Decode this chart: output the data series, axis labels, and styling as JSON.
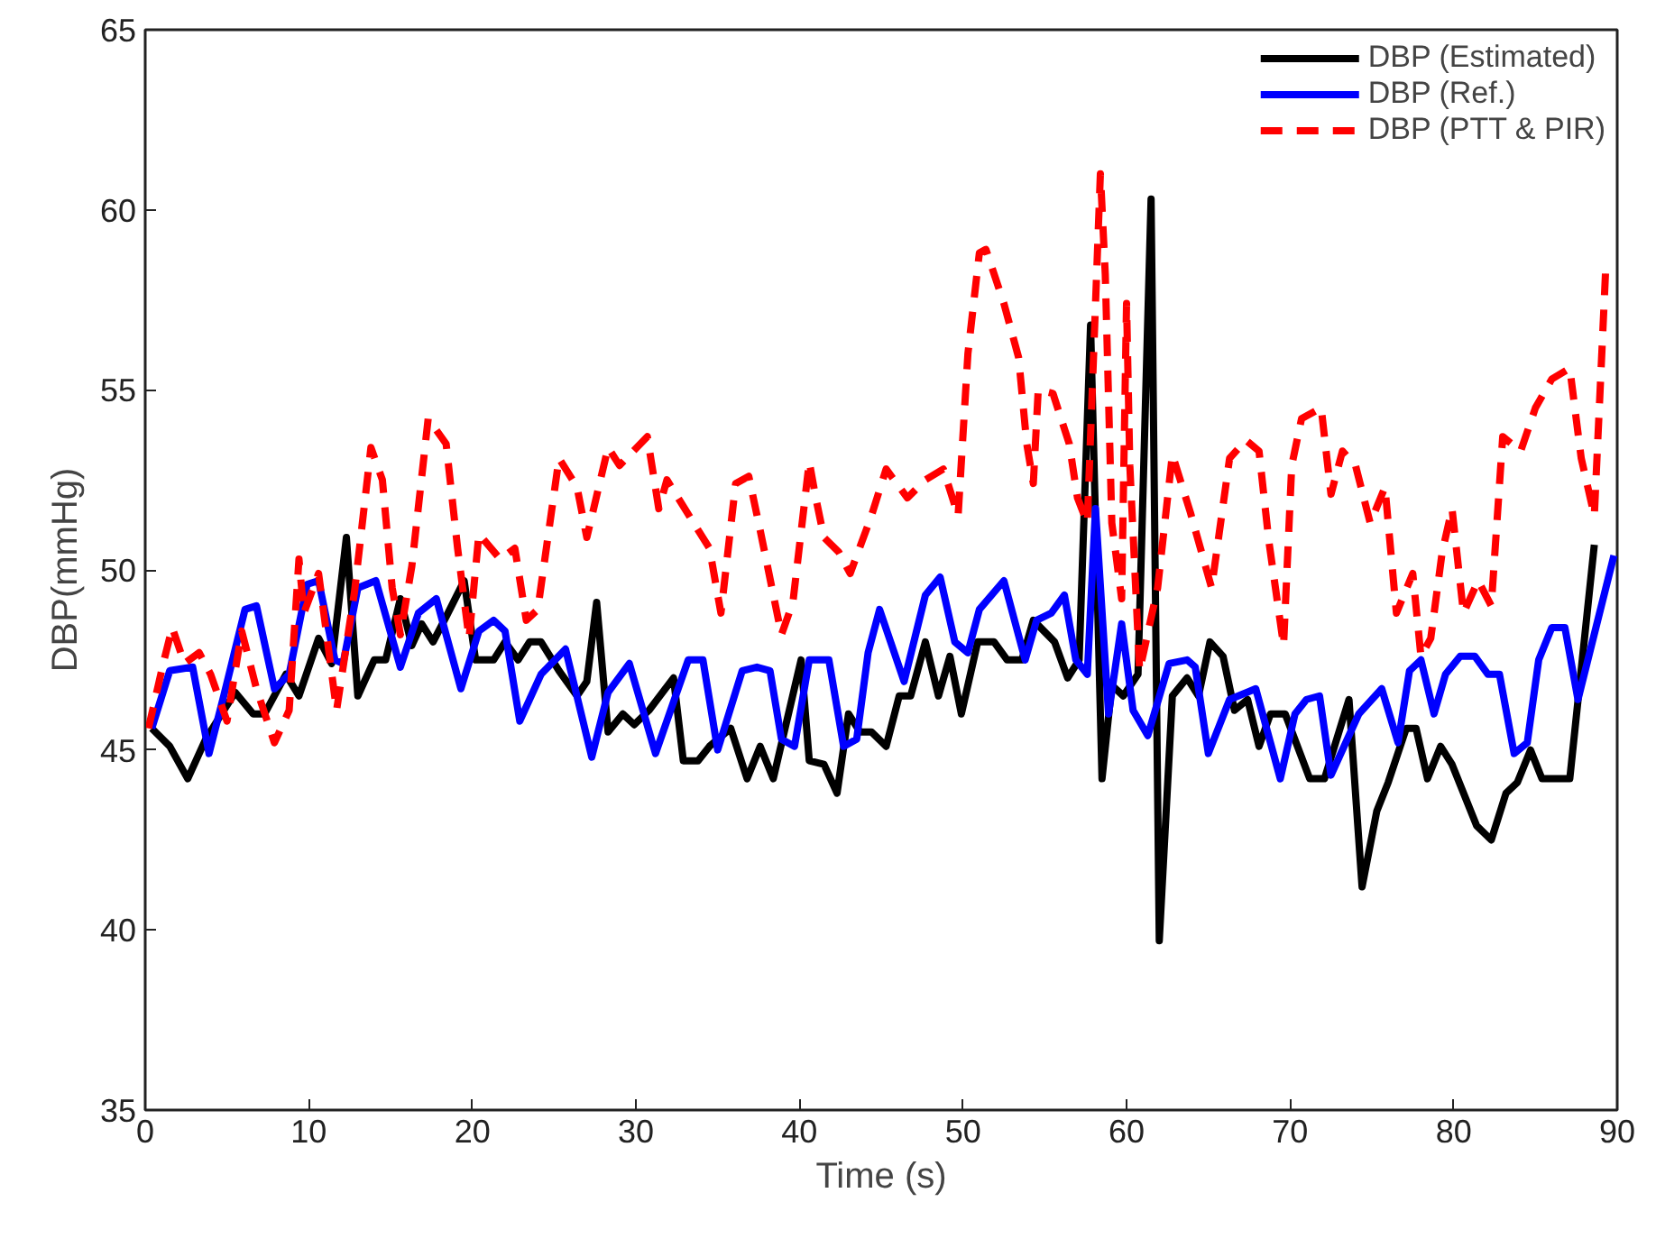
{
  "chart_data": {
    "type": "line",
    "xlabel": "Time (s)",
    "ylabel": "DBP(mmHg)",
    "xlim": [
      0,
      90
    ],
    "ylim": [
      35,
      65
    ],
    "xticks": [
      0,
      10,
      20,
      30,
      40,
      50,
      60,
      70,
      80,
      90
    ],
    "yticks": [
      35,
      40,
      45,
      50,
      55,
      60,
      65
    ],
    "grid": false,
    "legend": "top right",
    "marker": "none",
    "series": [
      {
        "name": "DBP (Estimated)",
        "color": "#000000",
        "line_style": "solid",
        "x": [
          0.4,
          1.5,
          2.6,
          3.7,
          5.5,
          6.6,
          7.3,
          8.6,
          9.4,
          10.6,
          11.4,
          12.3,
          13.0,
          14.0,
          14.7,
          15.6,
          16.3,
          16.9,
          17.6,
          18.4,
          19.5,
          20.2,
          21.3,
          22.0,
          22.8,
          23.5,
          24.2,
          25.3,
          26.4,
          27.0,
          27.6,
          28.3,
          29.2,
          29.9,
          30.8,
          32.3,
          32.9,
          33.8,
          34.5,
          35.8,
          36.8,
          37.6,
          38.4,
          40.1,
          40.6,
          41.5,
          42.3,
          43.0,
          43.7,
          44.4,
          45.3,
          46.1,
          46.8,
          47.7,
          48.5,
          49.2,
          49.9,
          50.9,
          51.9,
          52.7,
          53.6,
          54.3,
          55.6,
          56.4,
          57.1,
          57.8,
          58.5,
          59.1,
          59.8,
          60.7,
          61.5,
          62.0,
          62.8,
          63.7,
          64.4,
          65.1,
          65.9,
          66.6,
          67.4,
          68.1,
          68.8,
          69.7,
          71.2,
          72.1,
          73.6,
          74.4,
          75.3,
          76.0,
          77.1,
          77.7,
          78.4,
          79.2,
          79.9,
          81.4,
          82.3,
          83.2,
          83.9,
          84.7,
          85.4,
          87.1,
          88.6
        ],
        "values": [
          45.6,
          45.1,
          44.2,
          45.3,
          46.6,
          46.0,
          46.0,
          47.1,
          46.5,
          48.1,
          47.4,
          50.9,
          46.5,
          47.5,
          47.5,
          49.2,
          47.9,
          48.5,
          48.0,
          48.7,
          49.7,
          47.5,
          47.5,
          48.0,
          47.5,
          48.0,
          48.0,
          47.2,
          46.5,
          46.9,
          49.1,
          45.5,
          46.0,
          45.7,
          46.1,
          47.0,
          44.7,
          44.7,
          45.1,
          45.6,
          44.2,
          45.1,
          44.2,
          47.5,
          44.7,
          44.6,
          43.8,
          46.0,
          45.5,
          45.5,
          45.1,
          46.5,
          46.5,
          48.0,
          46.5,
          47.6,
          46.0,
          48.0,
          48.0,
          47.5,
          47.5,
          48.6,
          48.0,
          47.0,
          47.5,
          56.8,
          44.2,
          46.8,
          46.5,
          47.1,
          60.3,
          39.7,
          46.5,
          47.0,
          46.5,
          48.0,
          47.6,
          46.1,
          46.4,
          45.1,
          46.0,
          46.0,
          44.2,
          44.2,
          46.4,
          41.2,
          43.3,
          44.1,
          45.6,
          45.6,
          44.2,
          45.1,
          44.6,
          42.9,
          42.5,
          43.8,
          44.1,
          45.0,
          44.2,
          44.2,
          50.7
        ]
      },
      {
        "name": "DBP (Ref.)",
        "color": "#0000ff",
        "line_style": "solid",
        "x": [
          0.4,
          1.5,
          2.9,
          3.9,
          4.8,
          6.1,
          6.8,
          7.9,
          8.8,
          9.9,
          10.6,
          11.6,
          12.1,
          13.0,
          14.1,
          15.6,
          16.7,
          17.8,
          19.3,
          20.4,
          21.3,
          22.0,
          22.9,
          24.2,
          25.7,
          27.3,
          28.3,
          29.6,
          31.2,
          33.2,
          34.1,
          35.0,
          36.5,
          37.4,
          38.2,
          38.9,
          39.7,
          40.6,
          41.8,
          42.7,
          43.5,
          44.2,
          44.9,
          46.4,
          47.7,
          48.6,
          49.5,
          50.3,
          51.0,
          52.5,
          53.8,
          54.5,
          55.4,
          56.2,
          56.9,
          57.6,
          58.1,
          58.9,
          59.7,
          60.4,
          61.3,
          62.6,
          63.7,
          64.2,
          65.0,
          66.3,
          67.9,
          69.4,
          70.3,
          71.0,
          71.8,
          72.5,
          74.2,
          75.6,
          76.6,
          77.3,
          78.0,
          78.8,
          79.5,
          80.4,
          81.3,
          82.1,
          82.8,
          83.7,
          84.5,
          85.2,
          86.0,
          86.8,
          87.6,
          89.8
        ],
        "values": [
          45.6,
          47.2,
          47.3,
          44.9,
          46.5,
          48.9,
          49.0,
          46.7,
          47.1,
          49.6,
          49.7,
          47.5,
          47.4,
          49.5,
          49.7,
          47.3,
          48.8,
          49.2,
          46.7,
          48.3,
          48.6,
          48.3,
          45.8,
          47.1,
          47.8,
          44.8,
          46.6,
          47.4,
          44.9,
          47.5,
          47.5,
          45.0,
          47.2,
          47.3,
          47.2,
          45.3,
          45.1,
          47.5,
          47.5,
          45.1,
          45.3,
          47.7,
          48.9,
          46.9,
          49.3,
          49.8,
          48.0,
          47.7,
          48.9,
          49.7,
          47.5,
          48.6,
          48.8,
          49.3,
          47.5,
          47.1,
          51.7,
          46.0,
          48.5,
          46.1,
          45.4,
          47.4,
          47.5,
          47.3,
          44.9,
          46.4,
          46.7,
          44.2,
          46.0,
          46.4,
          46.5,
          44.3,
          46.0,
          46.7,
          45.2,
          47.2,
          47.5,
          46.0,
          47.1,
          47.6,
          47.6,
          47.1,
          47.1,
          44.9,
          45.2,
          47.5,
          48.4,
          48.4,
          46.4,
          50.4
        ]
      },
      {
        "name": "DBP (PTT & PIR)",
        "color": "#ff0000",
        "line_style": "dashed",
        "x": [
          0.2,
          1.1,
          1.65,
          2.4,
          3.3,
          4.0,
          5.0,
          5.9,
          6.8,
          7.9,
          8.8,
          9.4,
          9.7,
          10.6,
          11.7,
          12.8,
          13.8,
          14.5,
          15.1,
          15.6,
          16.3,
          17.3,
          18.4,
          19.1,
          19.8,
          20.4,
          21.7,
          22.6,
          23.3,
          24.0,
          25.3,
          26.4,
          27.0,
          28.3,
          29.0,
          30.7,
          31.4,
          31.9,
          33.4,
          34.5,
          35.2,
          36.1,
          36.9,
          37.6,
          38.9,
          39.6,
          40.6,
          41.0,
          41.5,
          42.4,
          43.1,
          44.4,
          45.3,
          46.6,
          47.7,
          48.8,
          49.7,
          50.3,
          51.0,
          51.4,
          52.5,
          53.4,
          53.9,
          54.3,
          54.6,
          55.5,
          56.5,
          57.0,
          57.6,
          58.4,
          58.7,
          59.1,
          59.7,
          60.0,
          60.2,
          60.8,
          61.9,
          62.8,
          63.9,
          65.2,
          66.3,
          67.3,
          68.1,
          68.7,
          69.6,
          70.1,
          70.7,
          71.9,
          72.5,
          73.2,
          74.0,
          74.9,
          75.8,
          76.5,
          77.5,
          78.0,
          78.6,
          79.3,
          79.9,
          80.6,
          81.5,
          82.3,
          83.0,
          84.1,
          85.0,
          86.0,
          87.1,
          87.8,
          88.6,
          89.3
        ],
        "values": [
          45.6,
          47.4,
          48.4,
          47.4,
          47.7,
          47.1,
          45.8,
          48.3,
          46.7,
          45.2,
          46.1,
          50.3,
          48.8,
          49.9,
          46.1,
          49.4,
          53.4,
          52.5,
          49.5,
          48.2,
          50.1,
          54.2,
          53.5,
          50.6,
          48.1,
          51.0,
          50.3,
          50.6,
          48.6,
          48.9,
          53.1,
          52.3,
          50.9,
          53.4,
          52.9,
          53.7,
          51.7,
          52.5,
          51.4,
          50.6,
          48.8,
          52.4,
          52.6,
          51.1,
          48.2,
          49.1,
          53.0,
          52.0,
          50.9,
          50.5,
          49.9,
          51.5,
          52.8,
          52.0,
          52.5,
          52.8,
          51.5,
          56.0,
          58.8,
          58.9,
          57.4,
          55.9,
          53.5,
          52.4,
          55.0,
          54.9,
          53.5,
          52.0,
          51.3,
          61.0,
          58.2,
          51.3,
          49.2,
          57.4,
          52.9,
          47.2,
          49.5,
          53.2,
          51.6,
          49.5,
          53.1,
          53.6,
          53.3,
          50.8,
          47.9,
          52.9,
          54.2,
          54.5,
          52.1,
          53.3,
          52.9,
          51.3,
          52.3,
          48.8,
          49.9,
          47.6,
          48.1,
          50.5,
          51.7,
          48.8,
          49.7,
          49.0,
          53.7,
          53.3,
          54.5,
          55.3,
          55.6,
          53.1,
          51.5,
          58.4
        ]
      }
    ]
  }
}
